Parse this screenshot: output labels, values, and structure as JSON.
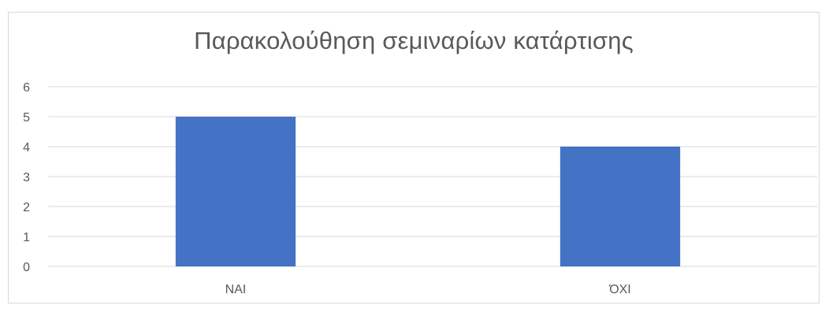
{
  "chart_data": {
    "type": "bar",
    "title": "Παρακολούθηση σεμιναρίων κατάρτισης",
    "categories": [
      "ΝΑΙ",
      "ΌΧΙ"
    ],
    "values": [
      5,
      4
    ],
    "ylim": [
      0,
      6
    ],
    "yticks": [
      0,
      1,
      2,
      3,
      4,
      5,
      6
    ],
    "xlabel": "",
    "ylabel": "",
    "grid": true,
    "legend": "none",
    "bar_color": "#4472c4",
    "grid_color": "#d9d9d9"
  }
}
